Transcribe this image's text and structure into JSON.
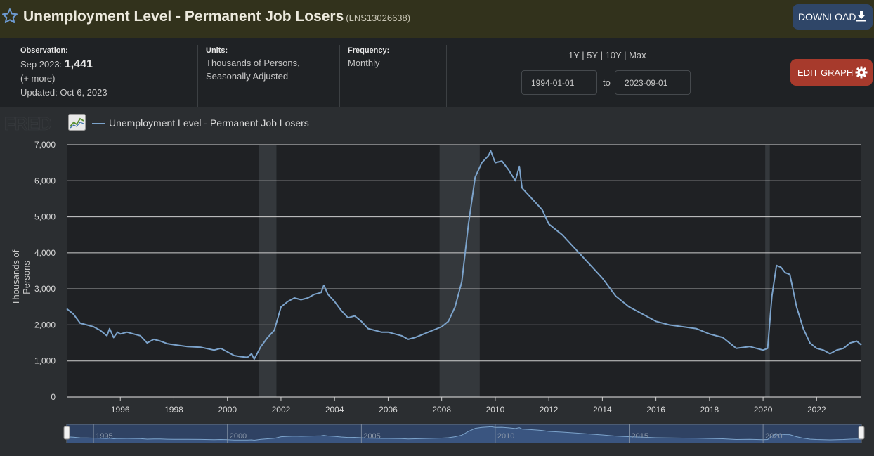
{
  "header": {
    "title": "Unemployment Level - Permanent Job Losers",
    "series_id": "(LNS13026638)",
    "download_label": "DOWNLOAD"
  },
  "info": {
    "observation_label": "Observation:",
    "observation_date": "Sep 2023:",
    "observation_value": "1,441",
    "more_link": "(+ more)",
    "updated": "Updated: Oct 6, 2023",
    "units_label": "Units:",
    "units_line1": "Thousands of Persons,",
    "units_line2": "Seasonally Adjusted",
    "frequency_label": "Frequency:",
    "frequency_value": "Monthly"
  },
  "range_controls": {
    "options": [
      "1Y",
      "5Y",
      "10Y",
      "Max"
    ],
    "start_date": "1994-01-01",
    "to_label": "to",
    "end_date": "2023-09-01",
    "edit_label": "EDIT GRAPH"
  },
  "colors": {
    "line": "#7ca3cb",
    "recession": "#34383c",
    "edit_button": "#a73a2c",
    "download_button": "#2f4668"
  },
  "chart_data": {
    "type": "line",
    "logo_text": "FRED",
    "legend": "Unemployment Level - Permanent Job Losers",
    "ylabel": "Thousands of Persons",
    "ylim": [
      0,
      7000
    ],
    "yticks": [
      "0",
      "1,000",
      "2,000",
      "3,000",
      "4,000",
      "5,000",
      "6,000",
      "7,000"
    ],
    "xlim": [
      1994.0,
      2023.67
    ],
    "xticks": [
      "1996",
      "1998",
      "2000",
      "2002",
      "2004",
      "2006",
      "2008",
      "2010",
      "2012",
      "2014",
      "2016",
      "2018",
      "2020",
      "2022"
    ],
    "navigator_ticks": [
      "1995",
      "2000",
      "2005",
      "2010",
      "2015",
      "2020"
    ],
    "recessions": [
      [
        2001.17,
        2001.83
      ],
      [
        2007.92,
        2009.42
      ],
      [
        2020.08,
        2020.25
      ]
    ],
    "grid": true,
    "series": [
      {
        "name": "Unemployment Level - Permanent Job Losers",
        "x": [
          1994.0,
          1994.25,
          1994.5,
          1994.75,
          1995.0,
          1995.25,
          1995.5,
          1995.6,
          1995.75,
          1995.9,
          1996.0,
          1996.25,
          1996.5,
          1996.75,
          1997.0,
          1997.25,
          1997.5,
          1997.75,
          1998.0,
          1998.5,
          1999.0,
          1999.5,
          1999.75,
          2000.0,
          2000.25,
          2000.5,
          2000.75,
          2000.9,
          2001.0,
          2001.25,
          2001.5,
          2001.75,
          2002.0,
          2002.25,
          2002.5,
          2002.75,
          2003.0,
          2003.25,
          2003.5,
          2003.6,
          2003.75,
          2004.0,
          2004.25,
          2004.5,
          2004.75,
          2005.0,
          2005.25,
          2005.5,
          2005.75,
          2006.0,
          2006.5,
          2006.75,
          2007.0,
          2007.5,
          2008.0,
          2008.25,
          2008.5,
          2008.75,
          2009.0,
          2009.25,
          2009.5,
          2009.75,
          2009.83,
          2010.0,
          2010.25,
          2010.5,
          2010.75,
          2010.9,
          2011.0,
          2011.25,
          2011.5,
          2011.75,
          2012.0,
          2012.5,
          2013.0,
          2013.5,
          2014.0,
          2014.5,
          2015.0,
          2015.5,
          2016.0,
          2016.5,
          2017.0,
          2017.5,
          2018.0,
          2018.5,
          2019.0,
          2019.5,
          2020.0,
          2020.17,
          2020.33,
          2020.5,
          2020.67,
          2020.83,
          2021.0,
          2021.25,
          2021.5,
          2021.75,
          2022.0,
          2022.25,
          2022.5,
          2022.75,
          2023.0,
          2023.25,
          2023.5,
          2023.67
        ],
        "values": [
          2450,
          2300,
          2050,
          2000,
          1950,
          1850,
          1700,
          1900,
          1650,
          1800,
          1750,
          1800,
          1750,
          1700,
          1500,
          1600,
          1550,
          1480,
          1450,
          1400,
          1380,
          1300,
          1350,
          1250,
          1150,
          1120,
          1100,
          1200,
          1050,
          1400,
          1650,
          1850,
          2500,
          2650,
          2750,
          2700,
          2750,
          2850,
          2900,
          3100,
          2850,
          2650,
          2400,
          2200,
          2250,
          2100,
          1900,
          1850,
          1800,
          1800,
          1700,
          1600,
          1650,
          1800,
          1950,
          2100,
          2500,
          3200,
          4800,
          6100,
          6500,
          6700,
          6830,
          6500,
          6550,
          6300,
          6000,
          6400,
          5800,
          5600,
          5400,
          5200,
          4800,
          4500,
          4100,
          3700,
          3300,
          2800,
          2500,
          2300,
          2100,
          2000,
          1950,
          1900,
          1750,
          1650,
          1350,
          1400,
          1300,
          1350,
          2800,
          3650,
          3600,
          3450,
          3400,
          2500,
          1900,
          1500,
          1350,
          1300,
          1200,
          1300,
          1350,
          1500,
          1550,
          1441
        ]
      }
    ]
  }
}
